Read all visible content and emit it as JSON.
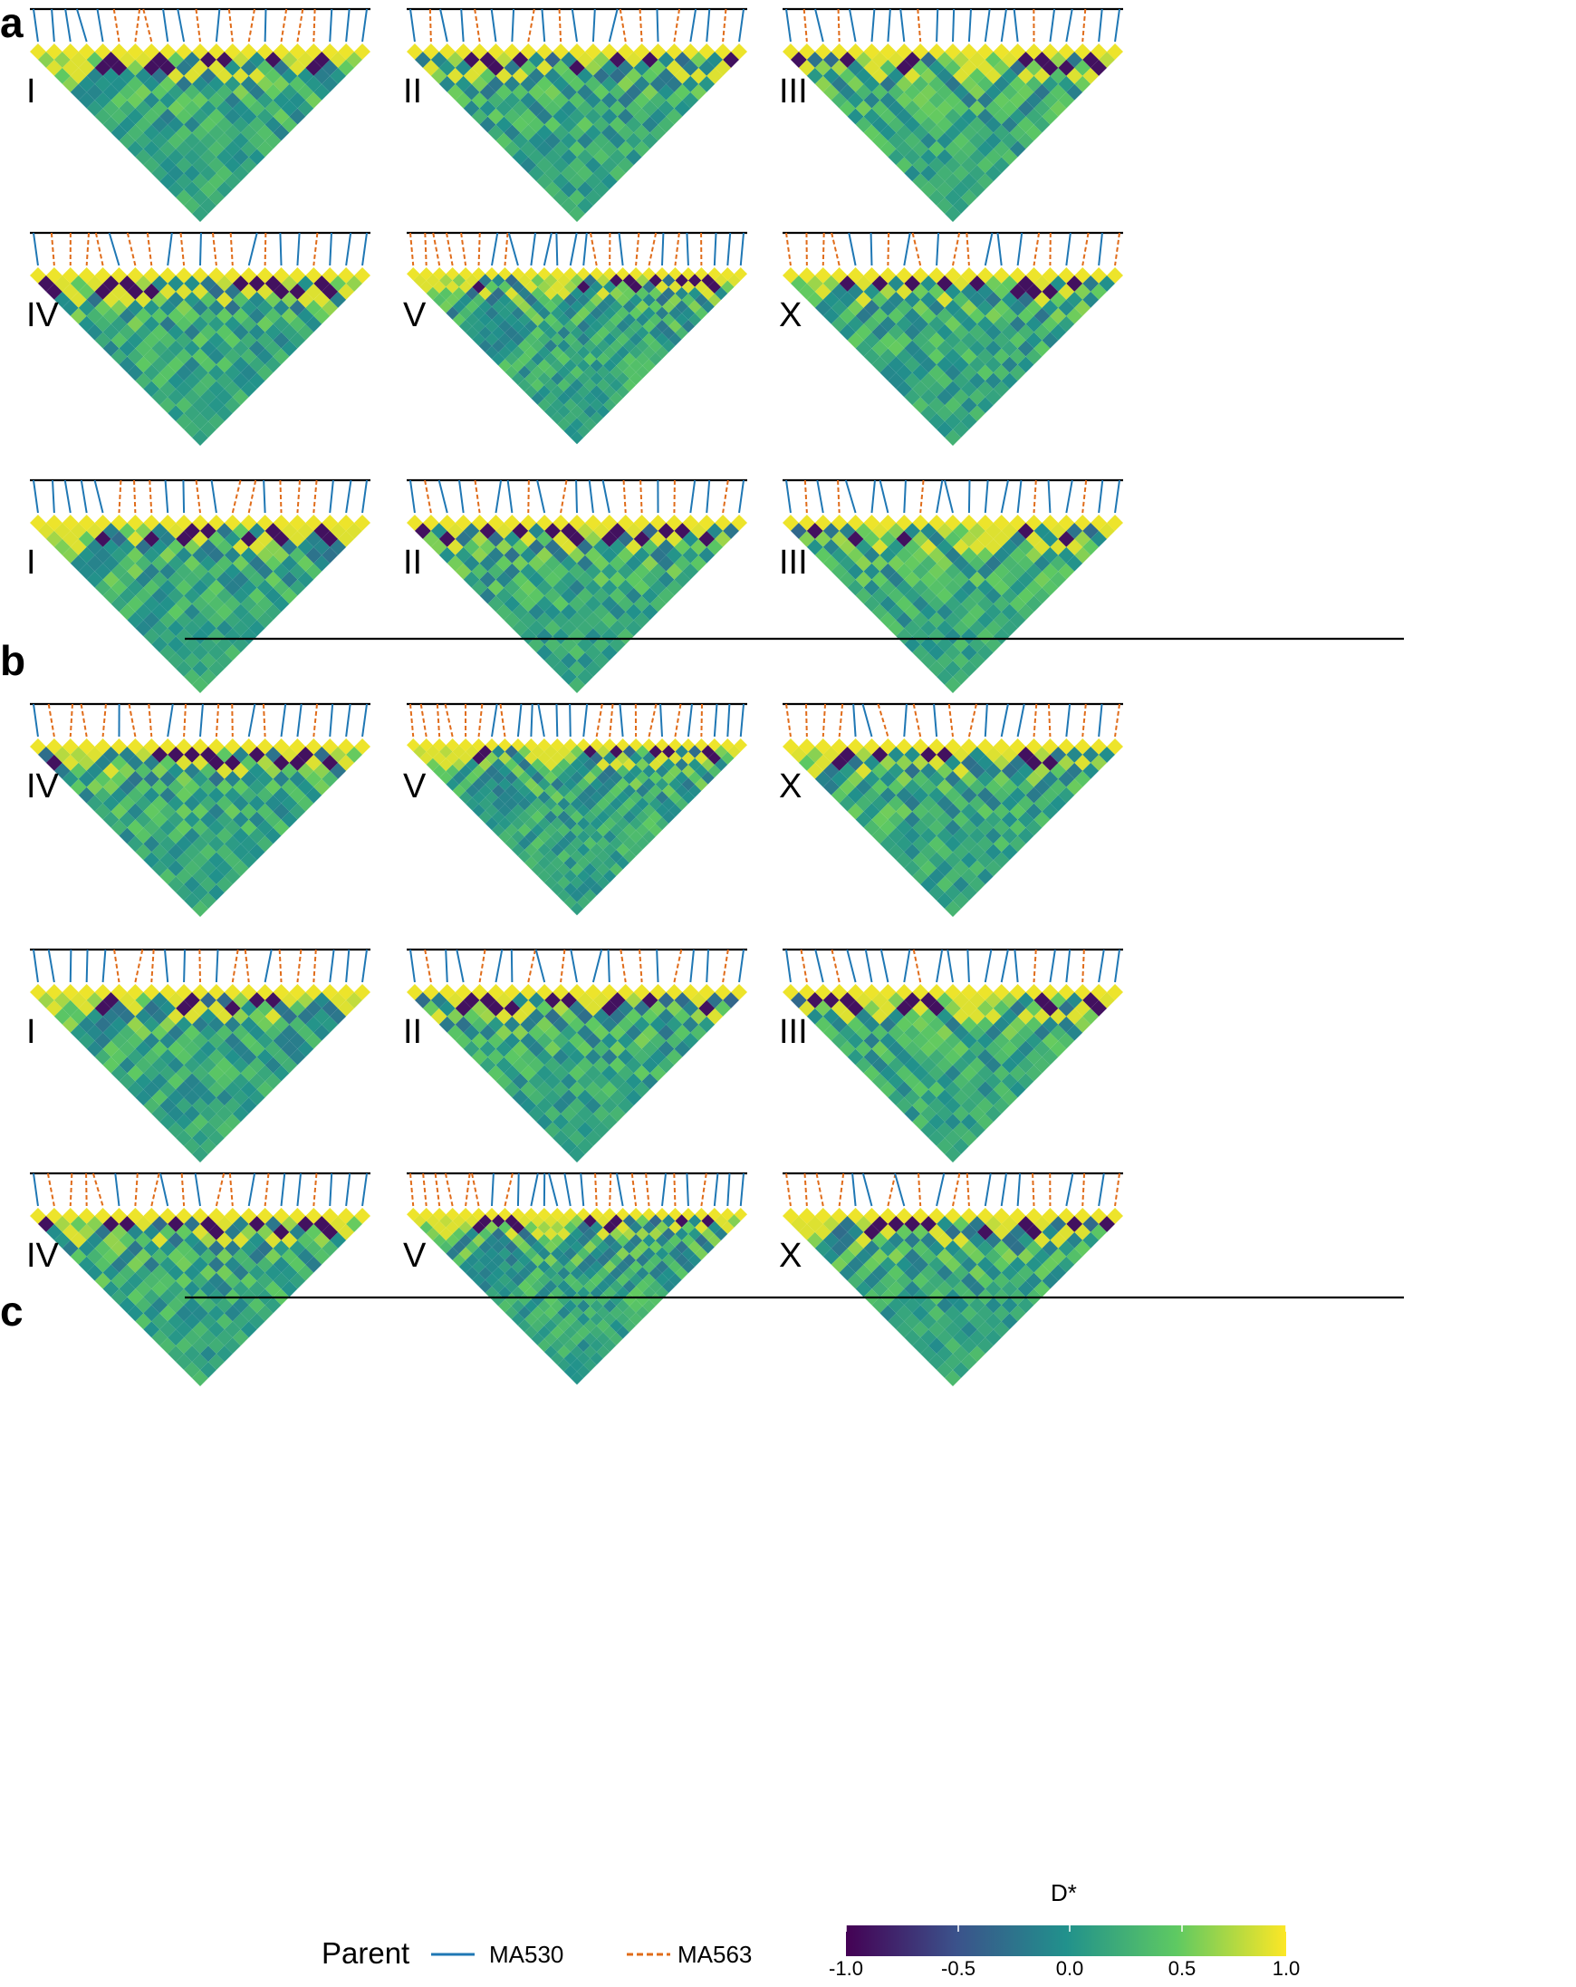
{
  "panels": [
    {
      "label": "a",
      "note": ""
    },
    {
      "label": "b",
      "note": ""
    },
    {
      "label": "c",
      "note": ""
    }
  ],
  "chromosomes": [
    "I",
    "II",
    "III",
    "IV",
    "V",
    "X"
  ],
  "legend": {
    "title": "Parent",
    "items": [
      {
        "label": "MA530",
        "style": "solid",
        "color": "#1f77b4"
      },
      {
        "label": "MA563",
        "style": "dashed",
        "color": "#e06c1a"
      }
    ]
  },
  "colorbar": {
    "title": "D*",
    "ticks": [
      "-1.0",
      "-0.5",
      "0.0",
      "0.5",
      "1.0"
    ],
    "palette": [
      "#440154",
      "#3b528b",
      "#21918c",
      "#5ec962",
      "#fde725"
    ]
  },
  "chart_data": {
    "type": "heatmap",
    "title": "",
    "description_metric": "D*",
    "value_range": [
      -1.0,
      1.0
    ],
    "layout": "3 panels (a, b, c) × 6 chromosome LD triangles (I, II, III, IV, V, X)",
    "marker_counts": {
      "I": 21,
      "II": 21,
      "III": 21,
      "IV": 21,
      "V": 26,
      "X": 21
    },
    "marker_parent_rows": {
      "I": "sssssdddssdsddsdddsss",
      "II": "sdssdssdsdsssddsdssds",
      "III": "sdsdssssdssssssdssdss",
      "IV": "sddddsddsdsddsdssdsss",
      "V": "ddddddsdssssssddsddsdsdsss",
      "X": "ddddssdsdsddsssddsdsd"
    },
    "typical_pattern": "strong positive D* (yellow) near diagonal, negative D* (purple) bands between markers of opposite parental phase"
  }
}
